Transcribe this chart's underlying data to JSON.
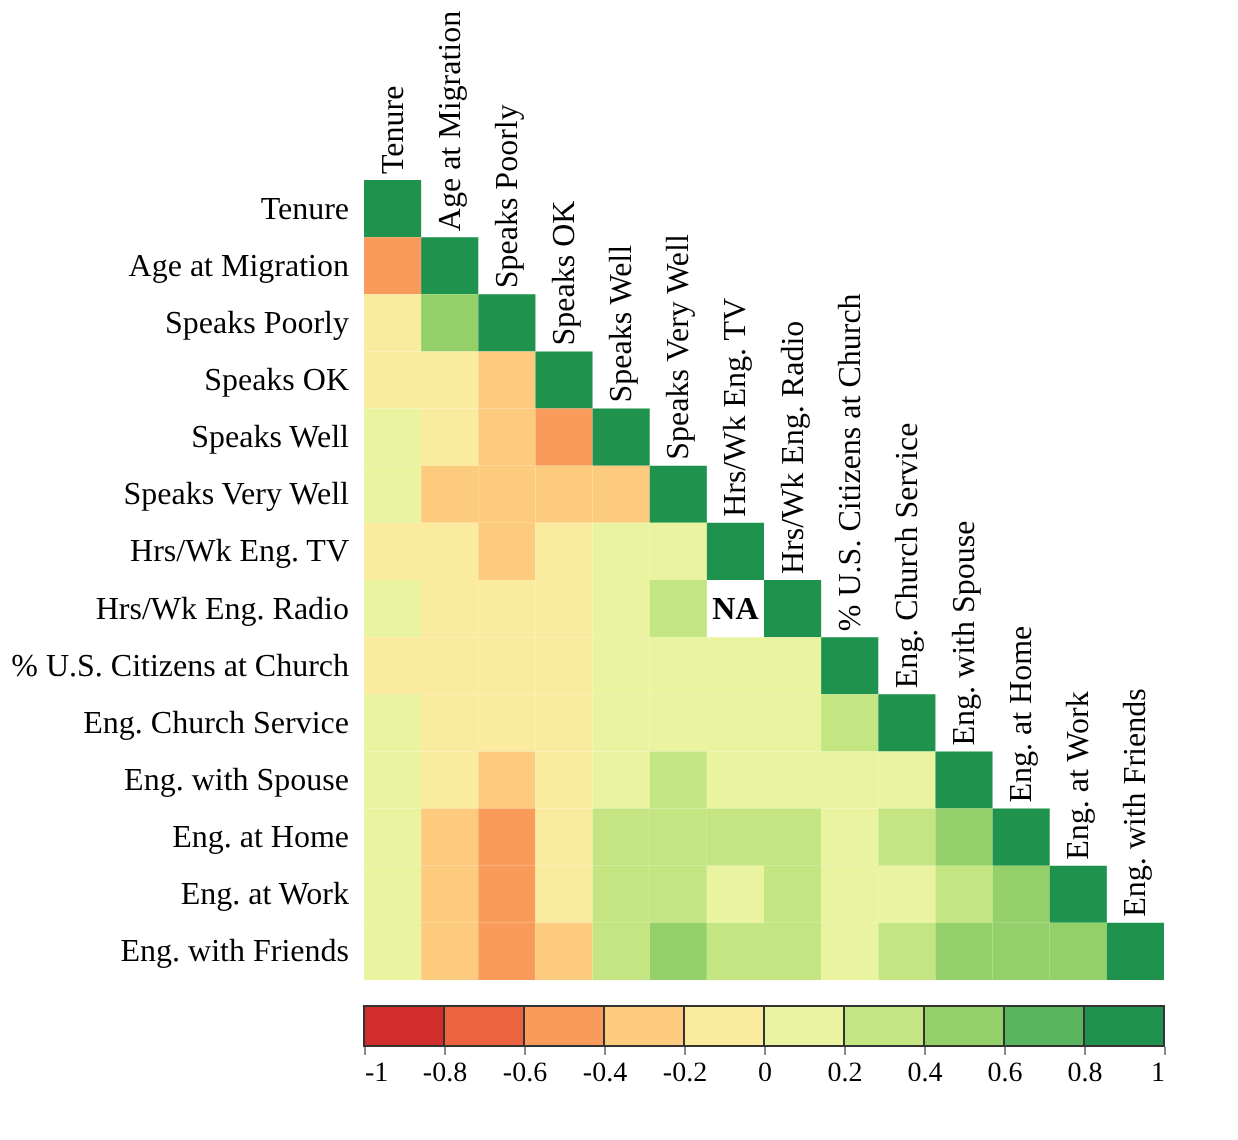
{
  "chart_data": {
    "type": "heatmap",
    "categories": [
      "Tenure",
      "Age at Migration",
      "Speaks Poorly",
      "Speaks OK",
      "Speaks Well",
      "Speaks Very Well",
      "Hrs/Wk Eng. TV",
      "Hrs/Wk Eng. Radio",
      "% U.S. Citizens at Church",
      "Eng. Church Service",
      "Eng. with Spouse",
      "Eng. at Home",
      "Eng. at Work",
      "Eng. with Friends"
    ],
    "y_categories": [
      "Tenure",
      "Age at Migration",
      "Speaks Poorly",
      "Speaks OK",
      "Speaks Well",
      "Speaks Very Well",
      "Hrs/Wk Eng. TV",
      "Hrs/Wk Eng. Radio",
      "% U.S. Citizens at Church",
      "Eng. Church Service",
      "Eng. with Spouse",
      "Eng. at Home",
      "Eng. at Work",
      "Eng. with Friends"
    ],
    "cells": [
      [
        1,
        null,
        null,
        null,
        null,
        null,
        null,
        null,
        null,
        null,
        null,
        null,
        null,
        null
      ],
      [
        -0.5,
        1,
        null,
        null,
        null,
        null,
        null,
        null,
        null,
        null,
        null,
        null,
        null,
        null
      ],
      [
        -0.1,
        0.5,
        1,
        null,
        null,
        null,
        null,
        null,
        null,
        null,
        null,
        null,
        null,
        null
      ],
      [
        -0.1,
        -0.1,
        -0.3,
        1,
        null,
        null,
        null,
        null,
        null,
        null,
        null,
        null,
        null,
        null
      ],
      [
        0.1,
        -0.1,
        -0.3,
        -0.5,
        1,
        null,
        null,
        null,
        null,
        null,
        null,
        null,
        null,
        null
      ],
      [
        0.1,
        -0.3,
        -0.3,
        -0.3,
        -0.3,
        1,
        null,
        null,
        null,
        null,
        null,
        null,
        null,
        null
      ],
      [
        -0.1,
        -0.1,
        -0.3,
        -0.1,
        0.1,
        0.1,
        1,
        null,
        null,
        null,
        null,
        null,
        null,
        null
      ],
      [
        0.1,
        -0.1,
        -0.1,
        -0.1,
        0.1,
        0.3,
        null,
        1,
        null,
        null,
        null,
        null,
        null,
        null
      ],
      [
        -0.1,
        -0.1,
        -0.1,
        -0.1,
        0.1,
        0.1,
        0.1,
        0.1,
        1,
        null,
        null,
        null,
        null,
        null
      ],
      [
        0.1,
        -0.1,
        -0.1,
        -0.1,
        0.1,
        0.1,
        0.1,
        0.1,
        0.3,
        1,
        null,
        null,
        null,
        null
      ],
      [
        0.1,
        -0.1,
        -0.3,
        -0.1,
        0.1,
        0.3,
        0.1,
        0.1,
        0.1,
        0.1,
        1,
        null,
        null,
        null
      ],
      [
        0.1,
        -0.3,
        -0.5,
        -0.1,
        0.3,
        0.3,
        0.3,
        0.3,
        0.1,
        0.3,
        0.5,
        1,
        null,
        null
      ],
      [
        0.1,
        -0.3,
        -0.5,
        -0.1,
        0.3,
        0.3,
        0.1,
        0.3,
        0.1,
        0.1,
        0.3,
        0.5,
        1,
        null
      ],
      [
        0.1,
        -0.3,
        -0.5,
        -0.3,
        0.3,
        0.5,
        0.3,
        0.3,
        0.1,
        0.3,
        0.5,
        0.5,
        0.5,
        1
      ]
    ],
    "cell_labels": [
      [
        null,
        null,
        null,
        null,
        null,
        null,
        null,
        null,
        null,
        null,
        null,
        null,
        null,
        null
      ],
      [
        null,
        null,
        null,
        null,
        null,
        null,
        null,
        null,
        null,
        null,
        null,
        null,
        null,
        null
      ],
      [
        null,
        null,
        null,
        null,
        null,
        null,
        null,
        null,
        null,
        null,
        null,
        null,
        null,
        null
      ],
      [
        null,
        null,
        null,
        null,
        null,
        null,
        null,
        null,
        null,
        null,
        null,
        null,
        null,
        null
      ],
      [
        null,
        null,
        null,
        null,
        null,
        null,
        null,
        null,
        null,
        null,
        null,
        null,
        null,
        null
      ],
      [
        null,
        null,
        null,
        null,
        null,
        null,
        null,
        null,
        null,
        null,
        null,
        null,
        null,
        null
      ],
      [
        null,
        null,
        null,
        null,
        null,
        null,
        null,
        null,
        null,
        null,
        null,
        null,
        null,
        null
      ],
      [
        null,
        null,
        null,
        null,
        null,
        null,
        "NA",
        null,
        null,
        null,
        null,
        null,
        null,
        null
      ],
      [
        null,
        null,
        null,
        null,
        null,
        null,
        null,
        null,
        null,
        null,
        null,
        null,
        null,
        null
      ],
      [
        null,
        null,
        null,
        null,
        null,
        null,
        null,
        null,
        null,
        null,
        null,
        null,
        null,
        null
      ],
      [
        null,
        null,
        null,
        null,
        null,
        null,
        null,
        null,
        null,
        null,
        null,
        null,
        null,
        null
      ],
      [
        null,
        null,
        null,
        null,
        null,
        null,
        null,
        null,
        null,
        null,
        null,
        null,
        null,
        null
      ],
      [
        null,
        null,
        null,
        null,
        null,
        null,
        null,
        null,
        null,
        null,
        null,
        null,
        null,
        null
      ],
      [
        null,
        null,
        null,
        null,
        null,
        null,
        null,
        null,
        null,
        null,
        null,
        null,
        null,
        null
      ]
    ],
    "clim": [
      -1,
      1
    ],
    "cticks": [
      -1,
      -0.8,
      -0.6,
      -0.4,
      -0.2,
      0,
      0.2,
      0.4,
      0.6,
      0.8,
      1
    ]
  }
}
